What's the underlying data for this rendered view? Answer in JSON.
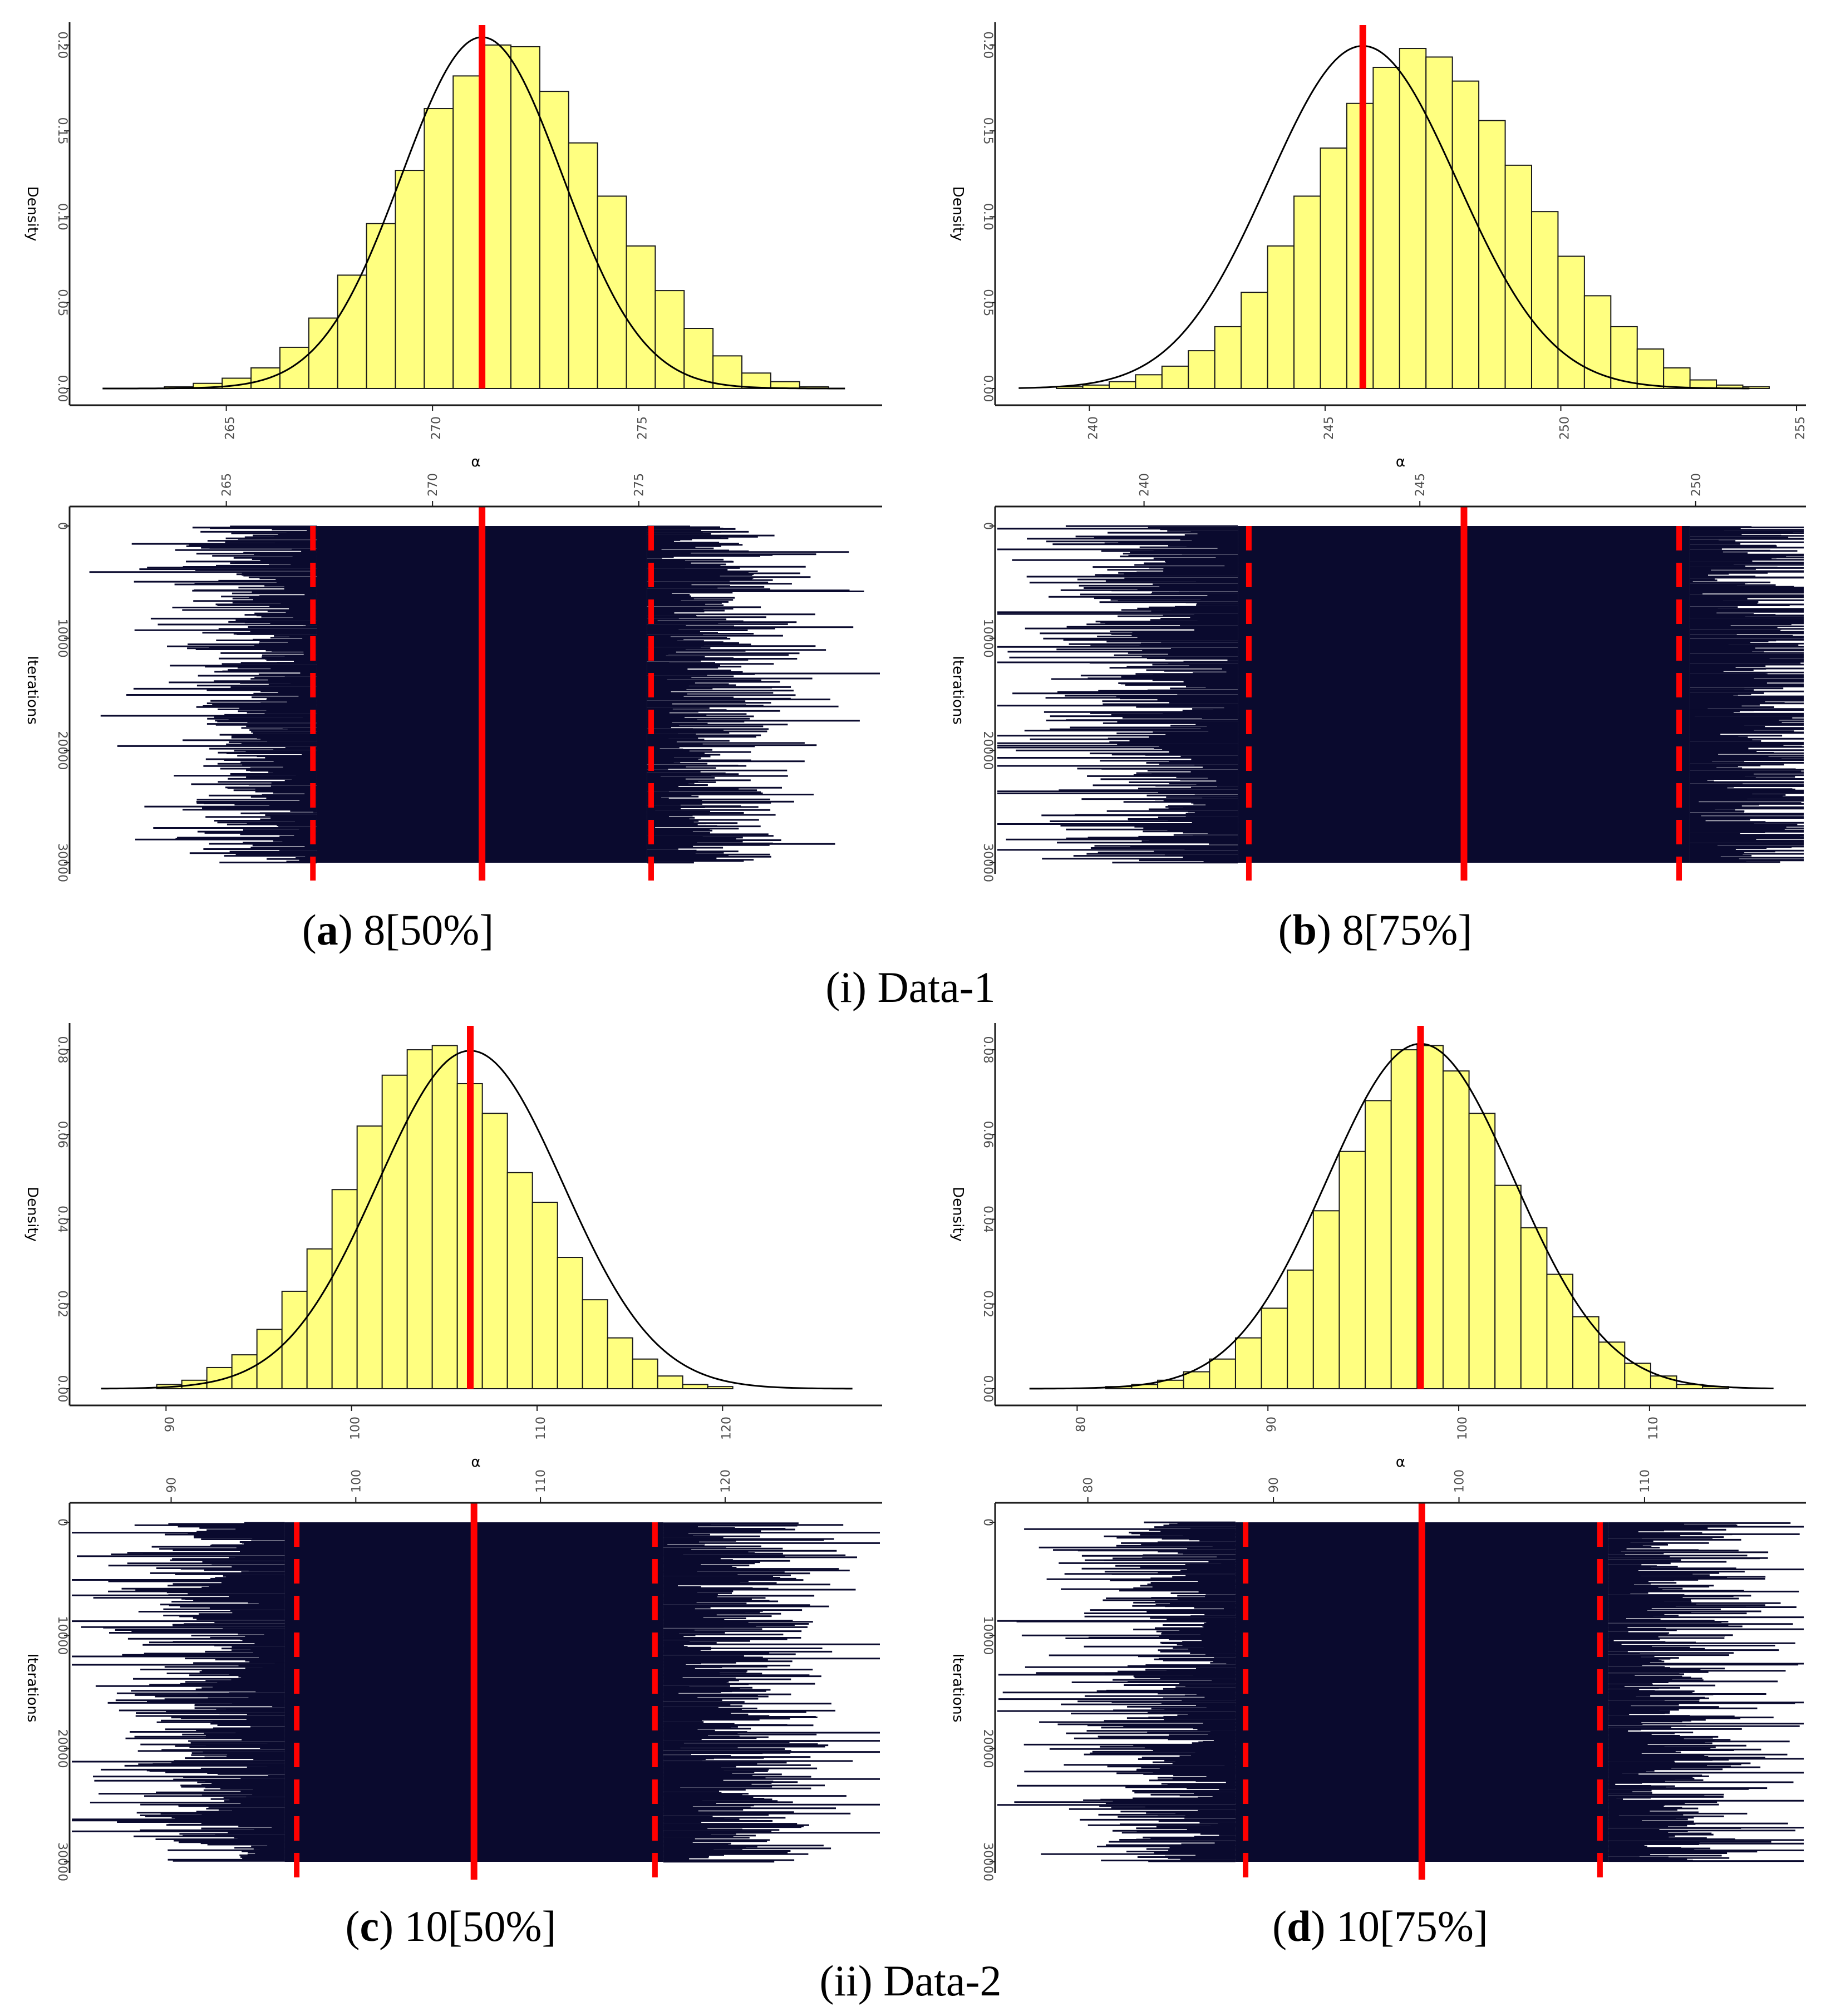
{
  "figure": {
    "groups": [
      {
        "label": "(i) Data-1"
      },
      {
        "label": "(ii) Data-2"
      }
    ]
  },
  "colors": {
    "bar_fill": "#ffff80",
    "bar_stroke": "#1a1a1a",
    "trace": "#0a0a2e",
    "marker": "#ff0000",
    "density": "#000000",
    "axis": "#1a1a1a"
  },
  "chart_data": [
    {
      "id": "a",
      "type": "bar",
      "caption_letter": "a",
      "caption_text": "8[50%]",
      "density": {
        "xlabel": "α",
        "ylabel": "Density",
        "xlim": [
          261.2,
          280.9
        ],
        "ylim": [
          0,
          0.21
        ],
        "xticks": [
          265,
          270,
          275
        ],
        "yticks": [
          0.0,
          0.05,
          0.1,
          0.15,
          0.2
        ],
        "ytick_labels": [
          "0.00",
          "0.05",
          "0.10",
          "0.15",
          "0.20"
        ],
        "bin_start": 263.5,
        "bin_width": 0.7,
        "values": [
          0.001,
          0.003,
          0.006,
          0.012,
          0.024,
          0.041,
          0.066,
          0.096,
          0.127,
          0.163,
          0.182,
          0.2,
          0.199,
          0.173,
          0.143,
          0.112,
          0.083,
          0.057,
          0.035,
          0.019,
          0.009,
          0.004,
          0.001
        ],
        "curve": {
          "mean": 271.2,
          "sd": 1.95,
          "x_range": [
            262.0,
            280.0
          ]
        },
        "estimate": 271.2
      },
      "trace": {
        "ylabel": "Iterations",
        "xlim": [
          261.2,
          280.9
        ],
        "ylim": [
          0,
          30000
        ],
        "xticks": [
          265,
          270,
          275
        ],
        "yticks": [
          0,
          10000,
          20000,
          30000
        ],
        "center": 271.2,
        "sd": 1.95,
        "seed": 11,
        "estimate": 271.2,
        "ci": [
          267.1,
          275.3
        ]
      }
    },
    {
      "id": "b",
      "type": "bar",
      "caption_letter": "b",
      "caption_text": "8[75%]",
      "density": {
        "xlabel": "α",
        "ylabel": "Density",
        "xlim": [
          238.0,
          255.2
        ],
        "ylim": [
          0,
          0.21
        ],
        "xticks": [
          240,
          245,
          250,
          255
        ],
        "yticks": [
          0.0,
          0.05,
          0.1,
          0.15,
          0.2
        ],
        "ytick_labels": [
          "0.00",
          "0.05",
          "0.10",
          "0.15",
          "0.20"
        ],
        "bin_start": 239.3,
        "bin_width": 0.56,
        "values": [
          0.001,
          0.002,
          0.004,
          0.008,
          0.013,
          0.022,
          0.036,
          0.056,
          0.083,
          0.112,
          0.14,
          0.166,
          0.187,
          0.198,
          0.193,
          0.179,
          0.156,
          0.13,
          0.103,
          0.077,
          0.054,
          0.036,
          0.023,
          0.012,
          0.005,
          0.002,
          0.001
        ],
        "curve": {
          "mean": 245.8,
          "sd": 2.0,
          "x_range": [
            238.5,
            254.0
          ]
        },
        "estimate": 245.8
      },
      "trace": {
        "ylabel": "Iterations",
        "xlim": [
          237.3,
          252.0
        ],
        "ylim": [
          0,
          30000
        ],
        "xticks": [
          240,
          245,
          250
        ],
        "yticks": [
          0,
          10000,
          20000,
          30000
        ],
        "center": 245.8,
        "sd": 2.0,
        "seed": 23,
        "estimate": 245.8,
        "ci": [
          241.9,
          249.7
        ]
      }
    },
    {
      "id": "c",
      "type": "bar",
      "caption_letter": "c",
      "caption_text": "10[50%]",
      "density": {
        "xlabel": "α",
        "ylabel": "Density",
        "xlim": [
          84.8,
          128.6
        ],
        "ylim": [
          0,
          0.085
        ],
        "xticks": [
          90,
          100,
          110,
          120
        ],
        "yticks": [
          0.0,
          0.02,
          0.04,
          0.06,
          0.08
        ],
        "ytick_labels": [
          "0.00",
          "0.02",
          "0.04",
          "0.06",
          "0.08"
        ],
        "bin_start": 89.5,
        "bin_width": 1.35,
        "values": [
          0.001,
          0.002,
          0.005,
          0.008,
          0.014,
          0.023,
          0.033,
          0.047,
          0.062,
          0.074,
          0.08,
          0.081,
          0.072,
          0.065,
          0.051,
          0.044,
          0.031,
          0.021,
          0.012,
          0.007,
          0.003,
          0.001,
          0.0005
        ],
        "curve": {
          "mean": 106.4,
          "sd": 5.0,
          "x_range": [
            86.5,
            127.0
          ]
        },
        "estimate": 106.4
      },
      "trace": {
        "ylabel": "Iterations",
        "xlim": [
          84.5,
          128.5
        ],
        "ylim": [
          0,
          30000
        ],
        "xticks": [
          90,
          100,
          110,
          120
        ],
        "yticks": [
          0,
          10000,
          20000,
          30000
        ],
        "center": 106.4,
        "sd": 5.0,
        "seed": 37,
        "estimate": 106.4,
        "ci": [
          96.8,
          116.2
        ]
      }
    },
    {
      "id": "d",
      "type": "bar",
      "caption_letter": "d",
      "caption_text": "10[75%]",
      "density": {
        "xlabel": "α",
        "ylabel": "Density",
        "xlim": [
          75.7,
          118.2
        ],
        "ylim": [
          0,
          0.085
        ],
        "xticks": [
          80,
          90,
          100,
          110
        ],
        "yticks": [
          0.0,
          0.02,
          0.04,
          0.06,
          0.08
        ],
        "ytick_labels": [
          "0.00",
          "0.02",
          "0.04",
          "0.06",
          "0.08"
        ],
        "bin_start": 81.5,
        "bin_width": 1.36,
        "values": [
          0.0005,
          0.001,
          0.002,
          0.004,
          0.007,
          0.012,
          0.019,
          0.028,
          0.042,
          0.056,
          0.068,
          0.08,
          0.081,
          0.075,
          0.065,
          0.048,
          0.038,
          0.027,
          0.017,
          0.011,
          0.006,
          0.003,
          0.001,
          0.0005
        ],
        "curve": {
          "mean": 98.0,
          "sd": 4.9,
          "x_range": [
            77.5,
            116.5
          ]
        },
        "estimate": 98.0
      },
      "trace": {
        "ylabel": "Iterations",
        "xlim": [
          75.0,
          118.7
        ],
        "ylim": [
          0,
          30000
        ],
        "xticks": [
          80,
          90,
          100,
          110
        ],
        "yticks": [
          0,
          10000,
          20000,
          30000
        ],
        "center": 98.0,
        "sd": 4.9,
        "seed": 53,
        "estimate": 98.0,
        "ci": [
          88.5,
          107.6
        ]
      }
    }
  ]
}
